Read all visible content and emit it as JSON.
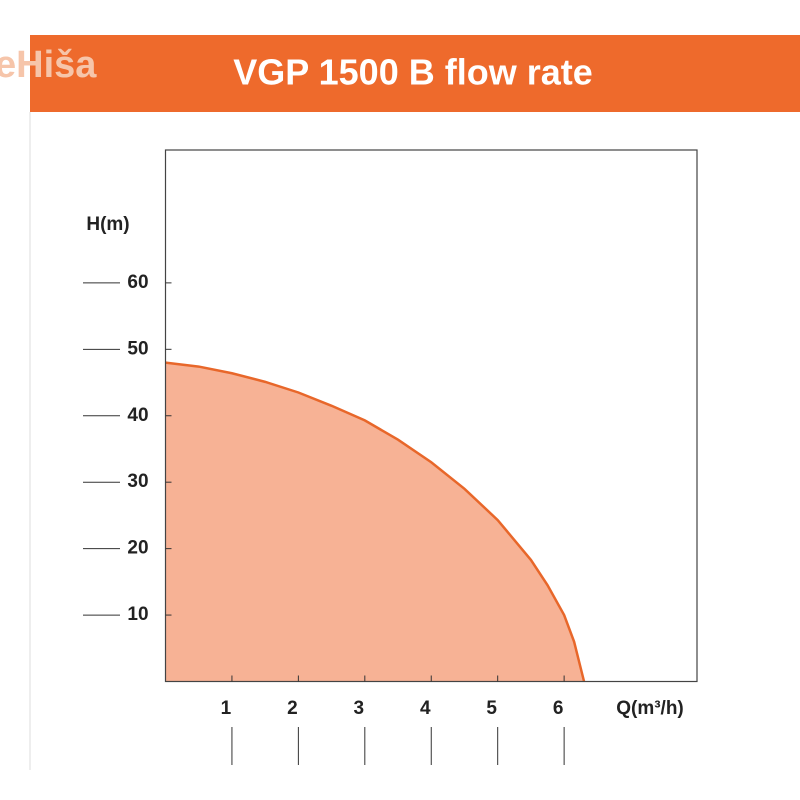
{
  "header": {
    "logo": "eHiša"
  },
  "chart_data": {
    "type": "area",
    "title": "VGP 1500 B flow rate",
    "x_label": "Q(m³/h)",
    "y_label": "H(m)",
    "x": [
      0,
      0.5,
      1,
      1.5,
      2,
      2.5,
      3,
      3.5,
      4,
      4.5,
      5,
      5.5,
      5.75,
      6,
      6.15,
      6.3
    ],
    "values": [
      48,
      47.4,
      46.4,
      45.1,
      43.5,
      41.5,
      39.3,
      36.4,
      33,
      29,
      24.3,
      18.3,
      14.5,
      10,
      6,
      0
    ],
    "color": "#f7b295",
    "line_color": "#e8672a",
    "xlim": [
      0,
      8
    ],
    "ylim": [
      0,
      80
    ],
    "xticks": [
      1,
      2,
      3,
      4,
      5,
      6
    ],
    "yticks": [
      10,
      20,
      30,
      40,
      50,
      60
    ]
  }
}
